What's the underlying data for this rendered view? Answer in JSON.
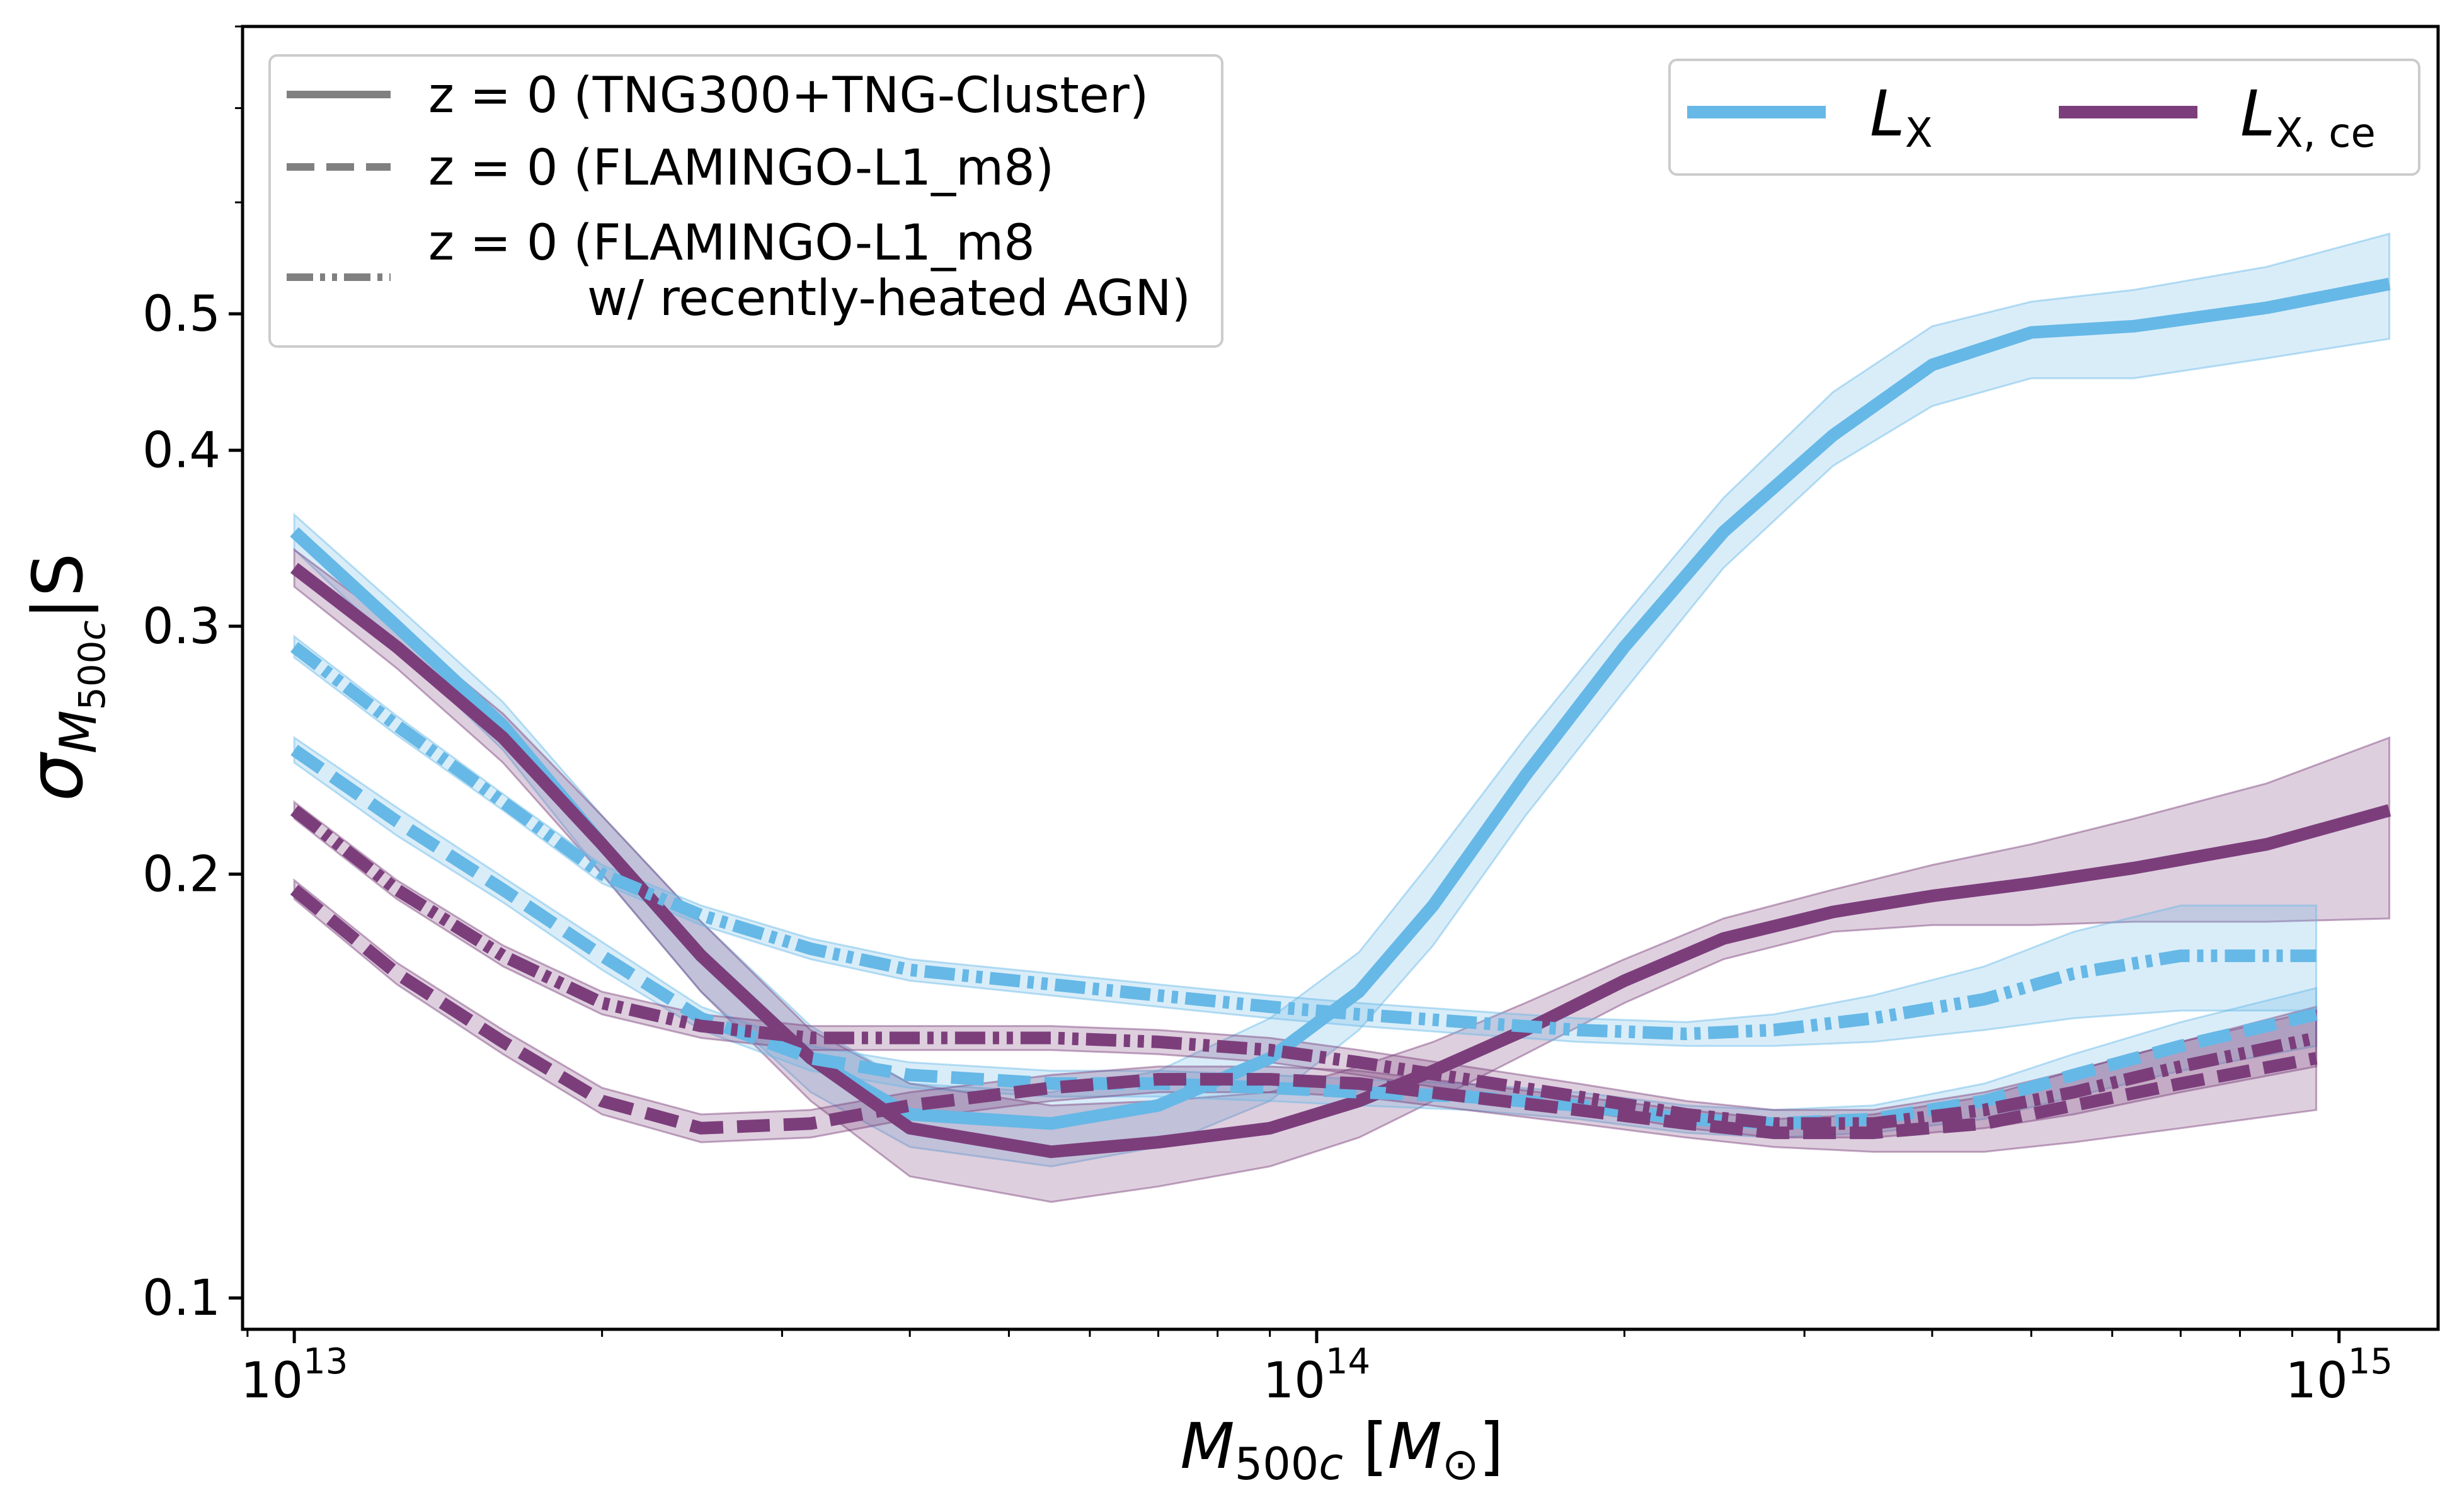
{
  "chart_data": {
    "type": "line",
    "xscale": "log",
    "yscale": "log",
    "xlim": [
      8900000000000.0,
      1250000000000000.0
    ],
    "ylim": [
      0.095,
      0.8
    ],
    "xlabel": "M_500c [M_⊙]",
    "ylabel": "σ_M500c|S",
    "x_ticks": [
      {
        "exp": "13",
        "value": 10000000000000.0
      },
      {
        "exp": "14",
        "value": 100000000000000.0
      },
      {
        "exp": "15",
        "value": 1000000000000000.0
      }
    ],
    "x_tick_base": "10",
    "y_ticks": [
      {
        "label": "0.1",
        "value": 0.1
      },
      {
        "label": "0.2",
        "value": 0.2
      },
      {
        "label": "0.3",
        "value": 0.3
      },
      {
        "label": "0.4",
        "value": 0.4
      },
      {
        "label": "0.5",
        "value": 0.5
      }
    ],
    "style_legend": [
      {
        "style": "solid",
        "text": "z = 0 (TNG300+TNG-Cluster)"
      },
      {
        "style": "dashed",
        "text": "z = 0 (FLAMINGO-L1_m8)"
      },
      {
        "style": "dashdotdot",
        "text": "z = 0 (FLAMINGO-L1_m8",
        "text2": "w/ recently-heated AGN)"
      }
    ],
    "color_legend": [
      {
        "key": "LX",
        "symbol": "L",
        "subscript": "X"
      },
      {
        "key": "LXce",
        "symbol": "L",
        "subscript": "X, ce"
      }
    ],
    "colors": {
      "LX": "#66b8e6",
      "LXce": "#7b3e7b"
    },
    "series": [
      {
        "name": "L_X TNG300+TNG-Cluster",
        "color_key": "LX",
        "style": "solid",
        "x": [
          10000000000000.0,
          12600000000000.0,
          16000000000000.0,
          20000000000000.0,
          25000000000000.0,
          32000000000000.0,
          40000000000000.0,
          55000000000000.0,
          70000000000000.0,
          90000000000000.0,
          110000000000000.0,
          130000000000000.0,
          160000000000000.0,
          200000000000000.0,
          250000000000000.0,
          320000000000000.0,
          400000000000000.0,
          500000000000000.0,
          630000000000000.0,
          850000000000000.0,
          1120000000000000.0
        ],
        "y": [
          0.35,
          0.3,
          0.255,
          0.21,
          0.175,
          0.148,
          0.135,
          0.133,
          0.137,
          0.148,
          0.165,
          0.19,
          0.235,
          0.29,
          0.35,
          0.41,
          0.46,
          0.485,
          0.49,
          0.505,
          0.525
        ],
        "band_lower": [
          0.34,
          0.29,
          0.245,
          0.2,
          0.165,
          0.14,
          0.128,
          0.124,
          0.128,
          0.138,
          0.155,
          0.178,
          0.22,
          0.27,
          0.33,
          0.39,
          0.43,
          0.45,
          0.45,
          0.465,
          0.48
        ],
        "band_upper": [
          0.36,
          0.31,
          0.265,
          0.22,
          0.185,
          0.156,
          0.142,
          0.14,
          0.145,
          0.158,
          0.176,
          0.205,
          0.25,
          0.305,
          0.37,
          0.44,
          0.49,
          0.51,
          0.52,
          0.54,
          0.57
        ]
      },
      {
        "name": "L_X,ce TNG300+TNG-Cluster",
        "color_key": "LXce",
        "style": "solid",
        "x": [
          10000000000000.0,
          12600000000000.0,
          16000000000000.0,
          20000000000000.0,
          25000000000000.0,
          32000000000000.0,
          40000000000000.0,
          55000000000000.0,
          70000000000000.0,
          90000000000000.0,
          110000000000000.0,
          130000000000000.0,
          160000000000000.0,
          200000000000000.0,
          250000000000000.0,
          320000000000000.0,
          400000000000000.0,
          500000000000000.0,
          630000000000000.0,
          850000000000000.0,
          1120000000000000.0
        ],
        "y": [
          0.33,
          0.29,
          0.25,
          0.21,
          0.175,
          0.148,
          0.132,
          0.127,
          0.129,
          0.132,
          0.138,
          0.145,
          0.155,
          0.168,
          0.18,
          0.188,
          0.193,
          0.197,
          0.202,
          0.21,
          0.222
        ],
        "band_lower": [
          0.32,
          0.28,
          0.24,
          0.2,
          0.165,
          0.138,
          0.122,
          0.117,
          0.12,
          0.124,
          0.13,
          0.138,
          0.149,
          0.162,
          0.174,
          0.182,
          0.184,
          0.184,
          0.185,
          0.185,
          0.186
        ],
        "band_upper": [
          0.34,
          0.3,
          0.26,
          0.22,
          0.185,
          0.155,
          0.142,
          0.137,
          0.138,
          0.14,
          0.146,
          0.152,
          0.162,
          0.174,
          0.186,
          0.195,
          0.203,
          0.21,
          0.219,
          0.232,
          0.25
        ]
      },
      {
        "name": "L_X FLAMINGO-L1_m8",
        "color_key": "LX",
        "style": "dashed",
        "x": [
          10000000000000.0,
          12600000000000.0,
          16000000000000.0,
          20000000000000.0,
          25000000000000.0,
          32000000000000.0,
          40000000000000.0,
          55000000000000.0,
          70000000000000.0,
          90000000000000.0,
          110000000000000.0,
          140000000000000.0,
          180000000000000.0,
          230000000000000.0,
          280000000000000.0,
          350000000000000.0,
          450000000000000.0,
          550000000000000.0,
          700000000000000.0,
          950000000000000.0
        ],
        "y": [
          0.245,
          0.218,
          0.195,
          0.175,
          0.158,
          0.148,
          0.144,
          0.142,
          0.142,
          0.141,
          0.14,
          0.139,
          0.137,
          0.134,
          0.133,
          0.134,
          0.138,
          0.144,
          0.151,
          0.159
        ],
        "band_lower": [
          0.24,
          0.213,
          0.191,
          0.171,
          0.155,
          0.145,
          0.141,
          0.139,
          0.139,
          0.138,
          0.137,
          0.136,
          0.134,
          0.131,
          0.13,
          0.131,
          0.134,
          0.139,
          0.145,
          0.151
        ],
        "band_upper": [
          0.25,
          0.223,
          0.199,
          0.179,
          0.161,
          0.151,
          0.147,
          0.145,
          0.145,
          0.144,
          0.143,
          0.142,
          0.14,
          0.137,
          0.136,
          0.137,
          0.142,
          0.149,
          0.157,
          0.166
        ]
      },
      {
        "name": "L_X,ce FLAMINGO-L1_m8",
        "color_key": "LXce",
        "style": "dashed",
        "x": [
          10000000000000.0,
          12600000000000.0,
          16000000000000.0,
          20000000000000.0,
          25000000000000.0,
          32000000000000.0,
          40000000000000.0,
          55000000000000.0,
          70000000000000.0,
          90000000000000.0,
          110000000000000.0,
          140000000000000.0,
          180000000000000.0,
          230000000000000.0,
          280000000000000.0,
          350000000000000.0,
          450000000000000.0,
          550000000000000.0,
          700000000000000.0,
          950000000000000.0
        ],
        "y": [
          0.195,
          0.17,
          0.152,
          0.138,
          0.132,
          0.133,
          0.137,
          0.141,
          0.143,
          0.143,
          0.142,
          0.139,
          0.136,
          0.133,
          0.131,
          0.131,
          0.133,
          0.137,
          0.142,
          0.148
        ],
        "band_lower": [
          0.192,
          0.167,
          0.149,
          0.135,
          0.129,
          0.13,
          0.134,
          0.138,
          0.14,
          0.14,
          0.139,
          0.136,
          0.133,
          0.13,
          0.128,
          0.127,
          0.127,
          0.129,
          0.132,
          0.136
        ],
        "band_upper": [
          0.198,
          0.173,
          0.155,
          0.141,
          0.135,
          0.136,
          0.14,
          0.144,
          0.146,
          0.146,
          0.145,
          0.142,
          0.139,
          0.136,
          0.134,
          0.135,
          0.139,
          0.145,
          0.152,
          0.161
        ]
      },
      {
        "name": "L_X FLAMINGO-L1_m8 w/ recently-heated AGN",
        "color_key": "LX",
        "style": "dashdotdot",
        "x": [
          10000000000000.0,
          12600000000000.0,
          16000000000000.0,
          20000000000000.0,
          25000000000000.0,
          32000000000000.0,
          40000000000000.0,
          55000000000000.0,
          70000000000000.0,
          90000000000000.0,
          110000000000000.0,
          140000000000000.0,
          180000000000000.0,
          230000000000000.0,
          280000000000000.0,
          350000000000000.0,
          450000000000000.0,
          550000000000000.0,
          700000000000000.0,
          950000000000000.0
        ],
        "y": [
          0.29,
          0.255,
          0.225,
          0.2,
          0.187,
          0.177,
          0.171,
          0.167,
          0.164,
          0.161,
          0.159,
          0.157,
          0.155,
          0.154,
          0.155,
          0.158,
          0.163,
          0.17,
          0.175,
          0.175
        ],
        "band_lower": [
          0.285,
          0.251,
          0.222,
          0.197,
          0.184,
          0.174,
          0.168,
          0.164,
          0.161,
          0.158,
          0.156,
          0.154,
          0.152,
          0.151,
          0.151,
          0.152,
          0.155,
          0.158,
          0.16,
          0.16
        ],
        "band_upper": [
          0.295,
          0.259,
          0.228,
          0.203,
          0.19,
          0.18,
          0.174,
          0.17,
          0.167,
          0.164,
          0.162,
          0.16,
          0.158,
          0.157,
          0.159,
          0.164,
          0.172,
          0.182,
          0.19,
          0.19
        ]
      },
      {
        "name": "L_X,ce FLAMINGO-L1_m8 w/ recently-heated AGN",
        "color_key": "LXce",
        "style": "dashdotdot",
        "x": [
          10000000000000.0,
          12600000000000.0,
          16000000000000.0,
          20000000000000.0,
          25000000000000.0,
          32000000000000.0,
          40000000000000.0,
          55000000000000.0,
          70000000000000.0,
          90000000000000.0,
          110000000000000.0,
          140000000000000.0,
          180000000000000.0,
          230000000000000.0,
          280000000000000.0,
          350000000000000.0,
          450000000000000.0,
          550000000000000.0,
          700000000000000.0,
          950000000000000.0
        ],
        "y": [
          0.222,
          0.195,
          0.175,
          0.162,
          0.156,
          0.153,
          0.153,
          0.153,
          0.152,
          0.15,
          0.147,
          0.143,
          0.139,
          0.135,
          0.133,
          0.133,
          0.136,
          0.14,
          0.146,
          0.153
        ],
        "band_lower": [
          0.219,
          0.192,
          0.172,
          0.159,
          0.153,
          0.15,
          0.15,
          0.15,
          0.149,
          0.147,
          0.144,
          0.14,
          0.136,
          0.132,
          0.13,
          0.13,
          0.132,
          0.135,
          0.14,
          0.146
        ],
        "band_upper": [
          0.225,
          0.198,
          0.178,
          0.165,
          0.159,
          0.156,
          0.156,
          0.156,
          0.155,
          0.153,
          0.15,
          0.146,
          0.142,
          0.138,
          0.136,
          0.136,
          0.14,
          0.145,
          0.152,
          0.16
        ]
      }
    ]
  }
}
